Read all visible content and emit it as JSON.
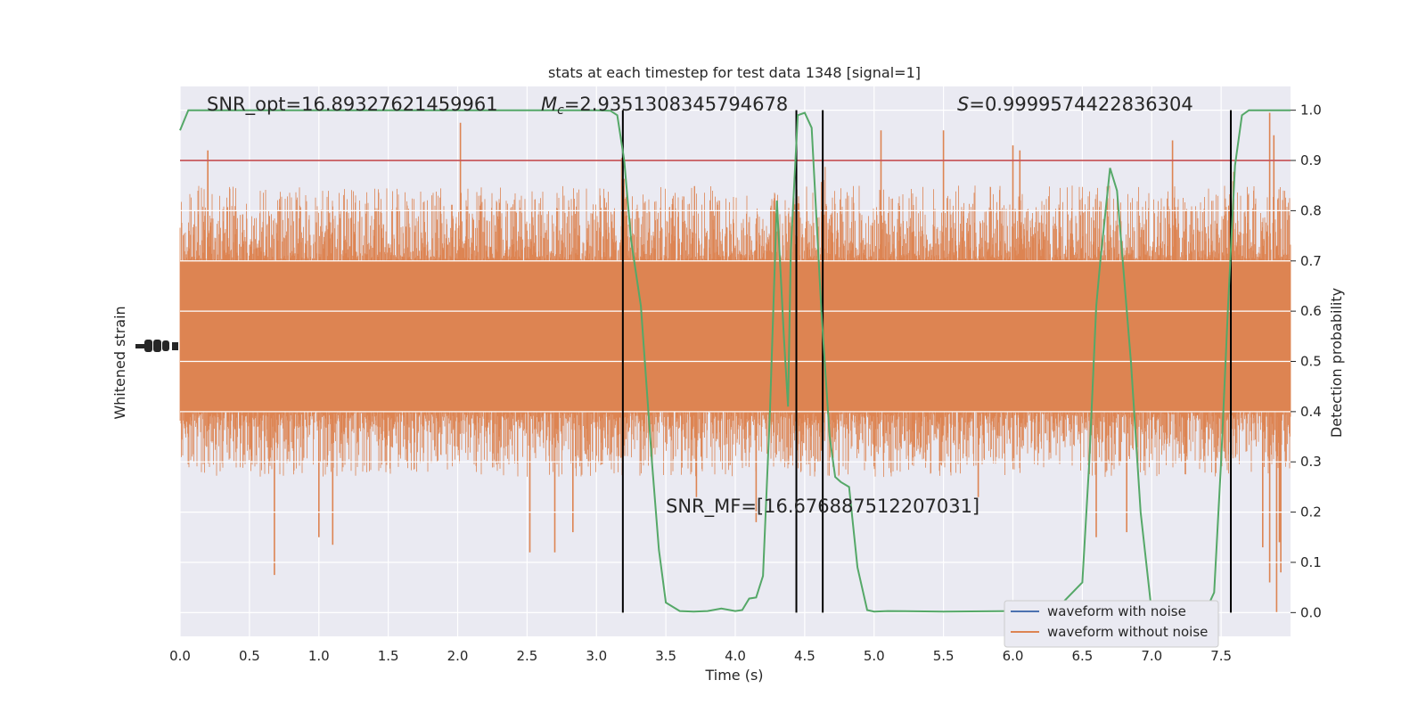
{
  "chart_data": {
    "type": "line",
    "title": "stats at each timestep for test data 1348 [signal=1]",
    "xlabel": "Time (s)",
    "ylabel_left": "Whitened strain",
    "ylabel_right": "Detection probability",
    "xlim": [
      0,
      8
    ],
    "ylim_right": [
      -0.0473,
      1.0473
    ],
    "x_ticks": [
      "0.0",
      "0.5",
      "1.0",
      "1.5",
      "2.0",
      "2.5",
      "3.0",
      "3.5",
      "4.0",
      "4.5",
      "5.0",
      "5.5",
      "6.0",
      "6.5",
      "7.0",
      "7.5"
    ],
    "y_right_ticks": [
      "0.0",
      "0.1",
      "0.2",
      "0.3",
      "0.4",
      "0.5",
      "0.6",
      "0.7",
      "0.8",
      "0.9",
      "1.0"
    ],
    "grid": true,
    "legend_position": "lower-right",
    "annotations": {
      "snr_opt": "SNR_opt=16.89327621459961",
      "mc_symbol": "M",
      "mc_subscript": "c",
      "mc_value": "=2.9351308345794678",
      "s_symbol": "S",
      "s_value": "=0.9999574422836304",
      "snr_mf": "SNR_MF=[16.676887512207031]"
    },
    "threshold": 0.9,
    "event_lines_x": [
      3.19,
      4.44,
      4.63,
      7.57
    ],
    "series": [
      {
        "name": "waveform with noise",
        "color": "#4c72b0",
        "kind": "strain"
      },
      {
        "name": "waveform without noise",
        "color": "#dd8452",
        "kind": "strain",
        "band": [
          0.4,
          0.7
        ],
        "envelope": [
          0.27,
          0.85
        ],
        "spikes": [
          [
            0.68,
            0.075
          ],
          [
            2.02,
            0.975
          ],
          [
            1.0,
            0.15
          ],
          [
            1.1,
            0.135
          ],
          [
            2.7,
            0.12
          ],
          [
            2.83,
            0.16
          ],
          [
            2.52,
            0.12
          ],
          [
            5.05,
            0.96
          ],
          [
            5.5,
            0.96
          ],
          [
            6.0,
            0.93
          ],
          [
            6.05,
            0.92
          ],
          [
            7.15,
            0.94
          ],
          [
            7.85,
            0.995
          ],
          [
            7.88,
            0.95
          ],
          [
            7.9,
            0.0
          ],
          [
            7.85,
            0.06
          ],
          [
            7.93,
            0.08
          ],
          [
            7.8,
            0.13
          ],
          [
            7.92,
            0.14
          ],
          [
            4.15,
            0.18
          ],
          [
            5.75,
            0.23
          ],
          [
            6.82,
            0.16
          ],
          [
            6.6,
            0.15
          ],
          [
            3.72,
            0.23
          ],
          [
            0.2,
            0.92
          ]
        ],
        "signal_bursts": [
          [
            3.18,
            3.22,
            0.3,
            0.92
          ],
          [
            4.42,
            4.46,
            0.35,
            0.85
          ],
          [
            4.62,
            4.65,
            0.3,
            0.9
          ],
          [
            7.55,
            7.6,
            0.3,
            0.88
          ]
        ]
      },
      {
        "name": "detection probability",
        "color": "#55a868",
        "kind": "probability",
        "x": [
          0.0,
          0.06,
          0.5,
          1.0,
          1.5,
          2.0,
          2.5,
          3.0,
          3.1,
          3.15,
          3.2,
          3.25,
          3.32,
          3.4,
          3.45,
          3.5,
          3.6,
          3.7,
          3.8,
          3.9,
          4.0,
          4.05,
          4.1,
          4.15,
          4.2,
          4.25,
          4.3,
          4.35,
          4.38,
          4.4,
          4.45,
          4.5,
          4.55,
          4.62,
          4.68,
          4.72,
          4.76,
          4.82,
          4.88,
          4.95,
          5.0,
          5.1,
          5.5,
          6.0,
          6.3,
          6.5,
          6.55,
          6.6,
          6.63,
          6.7,
          6.75,
          6.85,
          6.92,
          7.0,
          7.1,
          7.3,
          7.4,
          7.45,
          7.5,
          7.55,
          7.6,
          7.65,
          7.7,
          7.8,
          8.0
        ],
        "y": [
          0.96,
          1.0,
          1.0,
          1.0,
          1.0,
          1.0,
          1.0,
          1.0,
          0.999,
          0.99,
          0.9,
          0.74,
          0.61,
          0.3,
          0.125,
          0.02,
          0.003,
          0.002,
          0.003,
          0.008,
          0.003,
          0.005,
          0.028,
          0.03,
          0.073,
          0.4,
          0.82,
          0.55,
          0.41,
          0.72,
          0.99,
          0.995,
          0.965,
          0.6,
          0.35,
          0.27,
          0.26,
          0.25,
          0.09,
          0.005,
          0.002,
          0.003,
          0.002,
          0.003,
          0.003,
          0.06,
          0.3,
          0.61,
          0.7,
          0.885,
          0.84,
          0.5,
          0.2,
          0.0,
          0.0,
          0.005,
          0.01,
          0.04,
          0.3,
          0.61,
          0.89,
          0.99,
          1.0,
          1.0,
          1.0
        ]
      }
    ]
  }
}
